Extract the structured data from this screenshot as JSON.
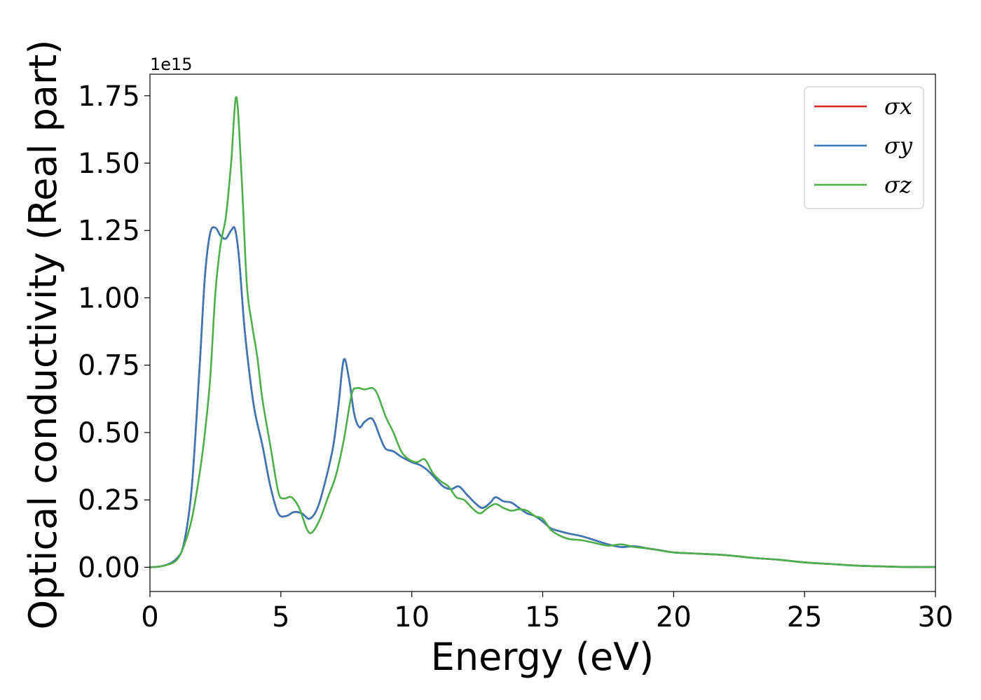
{
  "chart_data": {
    "type": "line",
    "xlabel": "Energy (eV)",
    "ylabel": "Optical conductivity (Real part)",
    "y_offset_label": "1e15",
    "xlim": [
      0,
      30
    ],
    "ylim": [
      -0.09,
      1.83
    ],
    "x_ticks": [
      0,
      5,
      10,
      15,
      20,
      25,
      30
    ],
    "x_tick_labels": [
      "0",
      "5",
      "10",
      "15",
      "20",
      "25",
      "30"
    ],
    "y_ticks": [
      0.0,
      0.25,
      0.5,
      0.75,
      1.0,
      1.25,
      1.5,
      1.75
    ],
    "y_tick_labels": [
      "0.00",
      "0.25",
      "0.50",
      "0.75",
      "1.00",
      "1.25",
      "1.50",
      "1.75"
    ],
    "grid": false,
    "legend_position": "top-right",
    "series": [
      {
        "name": "σx",
        "color": "#d62728",
        "x": [
          0,
          0.5,
          1.0,
          1.3,
          1.6,
          1.9,
          2.1,
          2.3,
          2.5,
          2.7,
          2.9,
          3.1,
          3.25,
          3.4,
          3.6,
          3.8,
          4.0,
          4.3,
          4.6,
          4.9,
          5.2,
          5.5,
          5.8,
          6.1,
          6.4,
          6.7,
          7.0,
          7.2,
          7.4,
          7.6,
          7.8,
          8.0,
          8.2,
          8.5,
          8.8,
          9.0,
          9.3,
          9.6,
          10.0,
          10.3,
          10.6,
          10.9,
          11.2,
          11.5,
          11.8,
          12.1,
          12.4,
          12.7,
          13.0,
          13.2,
          13.5,
          13.8,
          14.1,
          14.4,
          14.7,
          15.0,
          15.3,
          15.6,
          16.0,
          16.5,
          17.0,
          17.5,
          18.0,
          18.5,
          19.0,
          19.5,
          20.0,
          21.0,
          22.0,
          23.0,
          24.0,
          25.0,
          26.0,
          27.0,
          28.0,
          29.0,
          30.0
        ],
        "values": [
          0.0,
          0.005,
          0.03,
          0.09,
          0.3,
          0.75,
          1.08,
          1.24,
          1.26,
          1.23,
          1.22,
          1.25,
          1.255,
          1.15,
          0.9,
          0.72,
          0.58,
          0.45,
          0.3,
          0.2,
          0.19,
          0.205,
          0.2,
          0.18,
          0.22,
          0.32,
          0.45,
          0.6,
          0.77,
          0.7,
          0.57,
          0.52,
          0.54,
          0.55,
          0.48,
          0.44,
          0.43,
          0.41,
          0.39,
          0.38,
          0.36,
          0.33,
          0.3,
          0.29,
          0.3,
          0.27,
          0.24,
          0.22,
          0.24,
          0.26,
          0.245,
          0.24,
          0.22,
          0.2,
          0.19,
          0.17,
          0.145,
          0.135,
          0.125,
          0.115,
          0.1,
          0.085,
          0.075,
          0.078,
          0.07,
          0.063,
          0.055,
          0.05,
          0.045,
          0.035,
          0.028,
          0.018,
          0.012,
          0.006,
          0.003,
          0.001,
          0.001
        ]
      },
      {
        "name": "σy",
        "color": "#3a78b5",
        "x": [
          0,
          0.5,
          1.0,
          1.3,
          1.6,
          1.9,
          2.1,
          2.3,
          2.5,
          2.7,
          2.9,
          3.1,
          3.25,
          3.4,
          3.6,
          3.8,
          4.0,
          4.3,
          4.6,
          4.9,
          5.2,
          5.5,
          5.8,
          6.1,
          6.4,
          6.7,
          7.0,
          7.2,
          7.4,
          7.6,
          7.8,
          8.0,
          8.2,
          8.5,
          8.8,
          9.0,
          9.3,
          9.6,
          10.0,
          10.3,
          10.6,
          10.9,
          11.2,
          11.5,
          11.8,
          12.1,
          12.4,
          12.7,
          13.0,
          13.2,
          13.5,
          13.8,
          14.1,
          14.4,
          14.7,
          15.0,
          15.3,
          15.6,
          16.0,
          16.5,
          17.0,
          17.5,
          18.0,
          18.5,
          19.0,
          19.5,
          20.0,
          21.0,
          22.0,
          23.0,
          24.0,
          25.0,
          26.0,
          27.0,
          28.0,
          29.0,
          30.0
        ],
        "values": [
          0.0,
          0.005,
          0.03,
          0.09,
          0.3,
          0.75,
          1.08,
          1.24,
          1.26,
          1.23,
          1.22,
          1.25,
          1.255,
          1.15,
          0.9,
          0.72,
          0.58,
          0.45,
          0.3,
          0.2,
          0.19,
          0.205,
          0.2,
          0.18,
          0.22,
          0.32,
          0.45,
          0.6,
          0.77,
          0.7,
          0.57,
          0.52,
          0.54,
          0.55,
          0.48,
          0.44,
          0.43,
          0.41,
          0.39,
          0.38,
          0.36,
          0.33,
          0.3,
          0.29,
          0.3,
          0.27,
          0.24,
          0.22,
          0.24,
          0.26,
          0.245,
          0.24,
          0.22,
          0.2,
          0.19,
          0.17,
          0.145,
          0.135,
          0.125,
          0.115,
          0.1,
          0.085,
          0.075,
          0.078,
          0.07,
          0.063,
          0.055,
          0.05,
          0.045,
          0.035,
          0.028,
          0.018,
          0.012,
          0.006,
          0.003,
          0.001,
          0.001
        ]
      },
      {
        "name": "σz",
        "color": "#4daf4a",
        "x": [
          0,
          0.5,
          1.0,
          1.3,
          1.6,
          1.9,
          2.1,
          2.3,
          2.5,
          2.7,
          2.9,
          3.1,
          3.3,
          3.5,
          3.7,
          3.9,
          4.1,
          4.3,
          4.6,
          4.9,
          5.1,
          5.4,
          5.7,
          6.0,
          6.2,
          6.5,
          6.8,
          7.1,
          7.4,
          7.7,
          7.9,
          8.2,
          8.5,
          8.7,
          9.0,
          9.3,
          9.6,
          9.9,
          10.2,
          10.5,
          10.8,
          11.1,
          11.4,
          11.7,
          12.0,
          12.3,
          12.6,
          12.9,
          13.2,
          13.5,
          13.8,
          14.1,
          14.4,
          14.7,
          15.0,
          15.3,
          15.6,
          16.0,
          16.5,
          17.0,
          17.5,
          18.0,
          18.5,
          19.0,
          19.5,
          20.0,
          21.0,
          22.0,
          23.0,
          24.0,
          25.0,
          26.0,
          27.0,
          28.0,
          29.0,
          30.0
        ],
        "values": [
          0.0,
          0.005,
          0.025,
          0.08,
          0.18,
          0.35,
          0.5,
          0.7,
          1.02,
          1.2,
          1.3,
          1.5,
          1.745,
          1.45,
          1.05,
          0.9,
          0.78,
          0.62,
          0.45,
          0.28,
          0.255,
          0.26,
          0.22,
          0.14,
          0.13,
          0.18,
          0.26,
          0.34,
          0.47,
          0.64,
          0.665,
          0.66,
          0.665,
          0.64,
          0.56,
          0.5,
          0.43,
          0.4,
          0.39,
          0.4,
          0.35,
          0.32,
          0.3,
          0.26,
          0.25,
          0.22,
          0.2,
          0.22,
          0.235,
          0.22,
          0.21,
          0.215,
          0.21,
          0.19,
          0.18,
          0.14,
          0.12,
          0.105,
          0.1,
          0.09,
          0.08,
          0.085,
          0.075,
          0.07,
          0.062,
          0.055,
          0.05,
          0.045,
          0.035,
          0.028,
          0.018,
          0.012,
          0.006,
          0.003,
          0.001,
          0.001
        ]
      }
    ]
  }
}
